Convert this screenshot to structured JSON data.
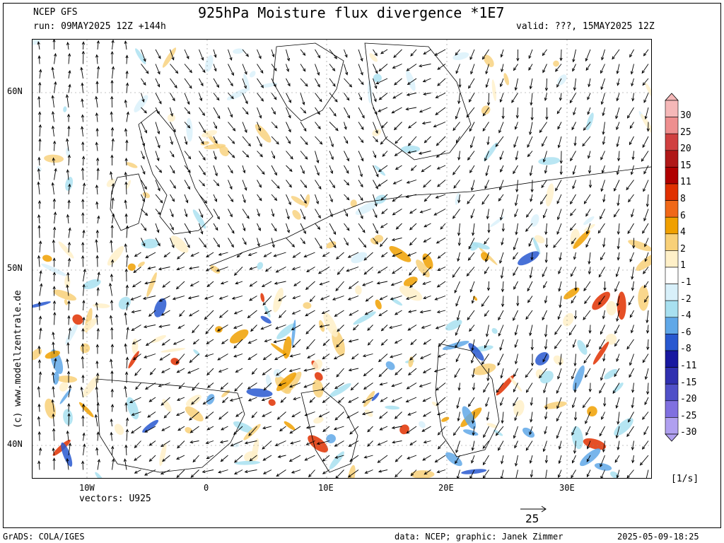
{
  "header": {
    "model": "NCEP GFS",
    "run": "run: 09MAY2025 12Z +144h",
    "title": "925hPa Moisture flux divergence *1E7",
    "valid": "valid: ???, 15MAY2025 12Z"
  },
  "axes": {
    "lat_labels": [
      "60N",
      "50N",
      "40N"
    ],
    "lon_labels": [
      "10W",
      "0",
      "10E",
      "20E",
      "30E"
    ],
    "vectors_label": "vectors: U925"
  },
  "watermark": "(c) www.modellzentrale.de",
  "colorbar": {
    "levels": [
      "30",
      "25",
      "20",
      "15",
      "11",
      "8",
      "6",
      "4",
      "2",
      "1",
      "-1",
      "-2",
      "-4",
      "-6",
      "-8",
      "-11",
      "-15",
      "-20",
      "-25",
      "-30"
    ],
    "colors": [
      "#f5b8b8",
      "#ee8f8f",
      "#d04040",
      "#b01818",
      "#b00000",
      "#e03000",
      "#f06818",
      "#f0a000",
      "#f8d078",
      "#fff0c8",
      "#ffffff",
      "#d8f0fa",
      "#a8e0f0",
      "#60a8e8",
      "#2858d0",
      "#1818a0",
      "#3030b0",
      "#5050c8",
      "#8070e0",
      "#b0a0f0"
    ],
    "unit": "[1/s]"
  },
  "reference_vector": "25",
  "footer": {
    "left": "GrADS: COLA/IGES",
    "credit": "data: NCEP; graphic: Janek Zimmer",
    "timestamp": "2025-05-09-18:25"
  }
}
